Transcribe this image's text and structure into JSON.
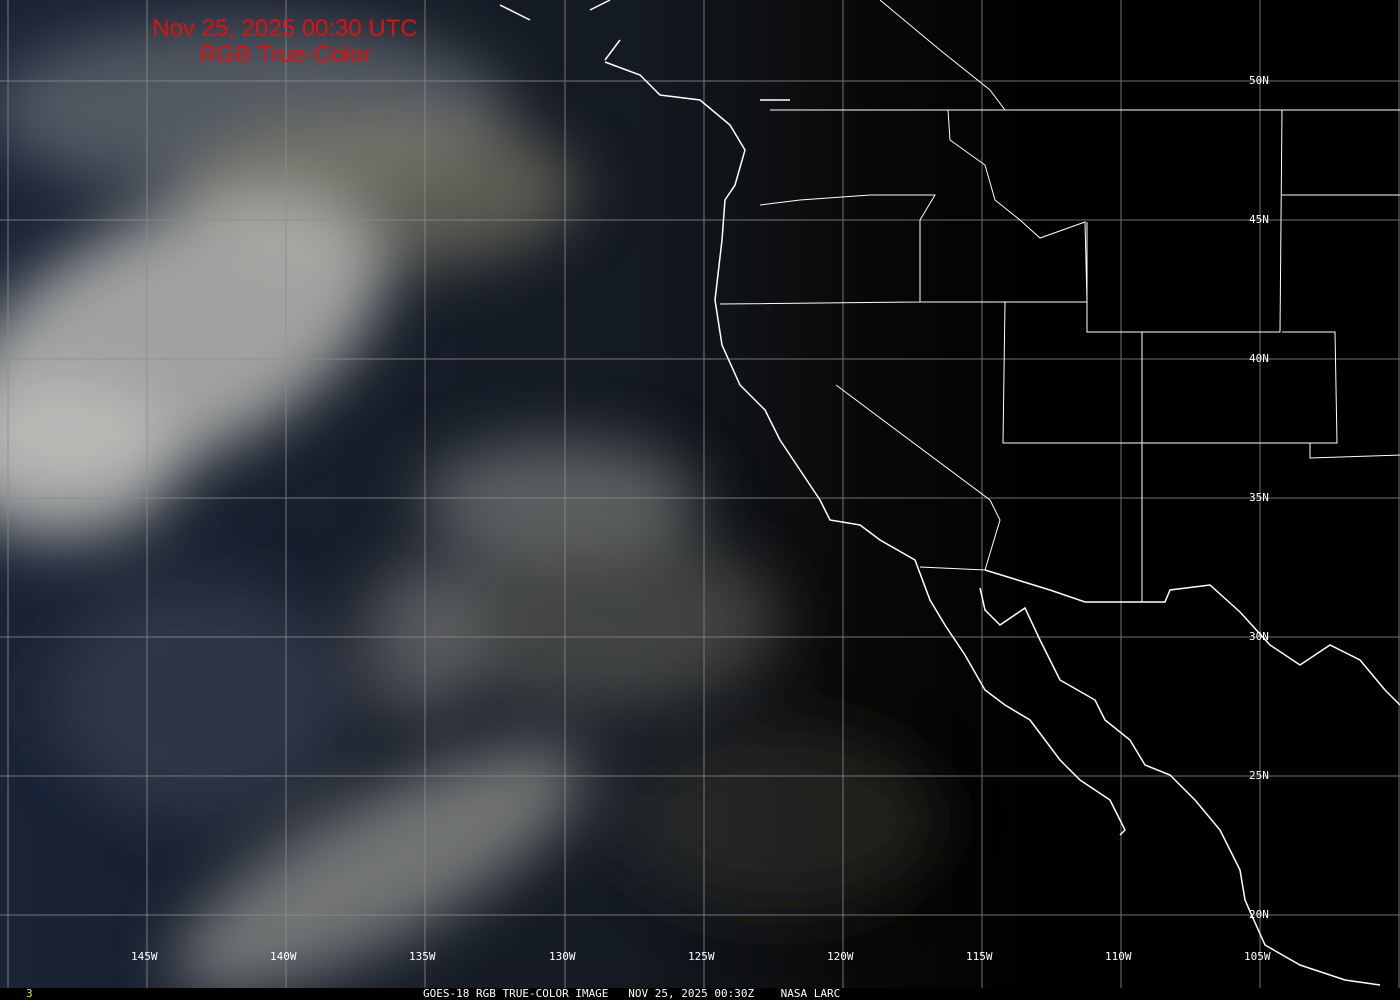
{
  "header": {
    "line1": "Nov 25, 2025 00:30 UTC",
    "line2": "RGB True-Color"
  },
  "footer": {
    "frame": "3",
    "caption": "GOES-18 RGB TRUE-COLOR IMAGE   NOV 25, 2025 00:30Z    NASA LARC"
  },
  "colors": {
    "title": "#e01010",
    "frame": "#f0e000",
    "overlay": "#ffffff",
    "grid": "#8c8c8c"
  },
  "lon_labels": [
    "145W",
    "140W",
    "135W",
    "130W",
    "125W",
    "120W",
    "115W",
    "110W",
    "105W"
  ],
  "lat_labels": [
    "50N",
    "45N",
    "40N",
    "35N",
    "30N",
    "25N",
    "20N"
  ]
}
